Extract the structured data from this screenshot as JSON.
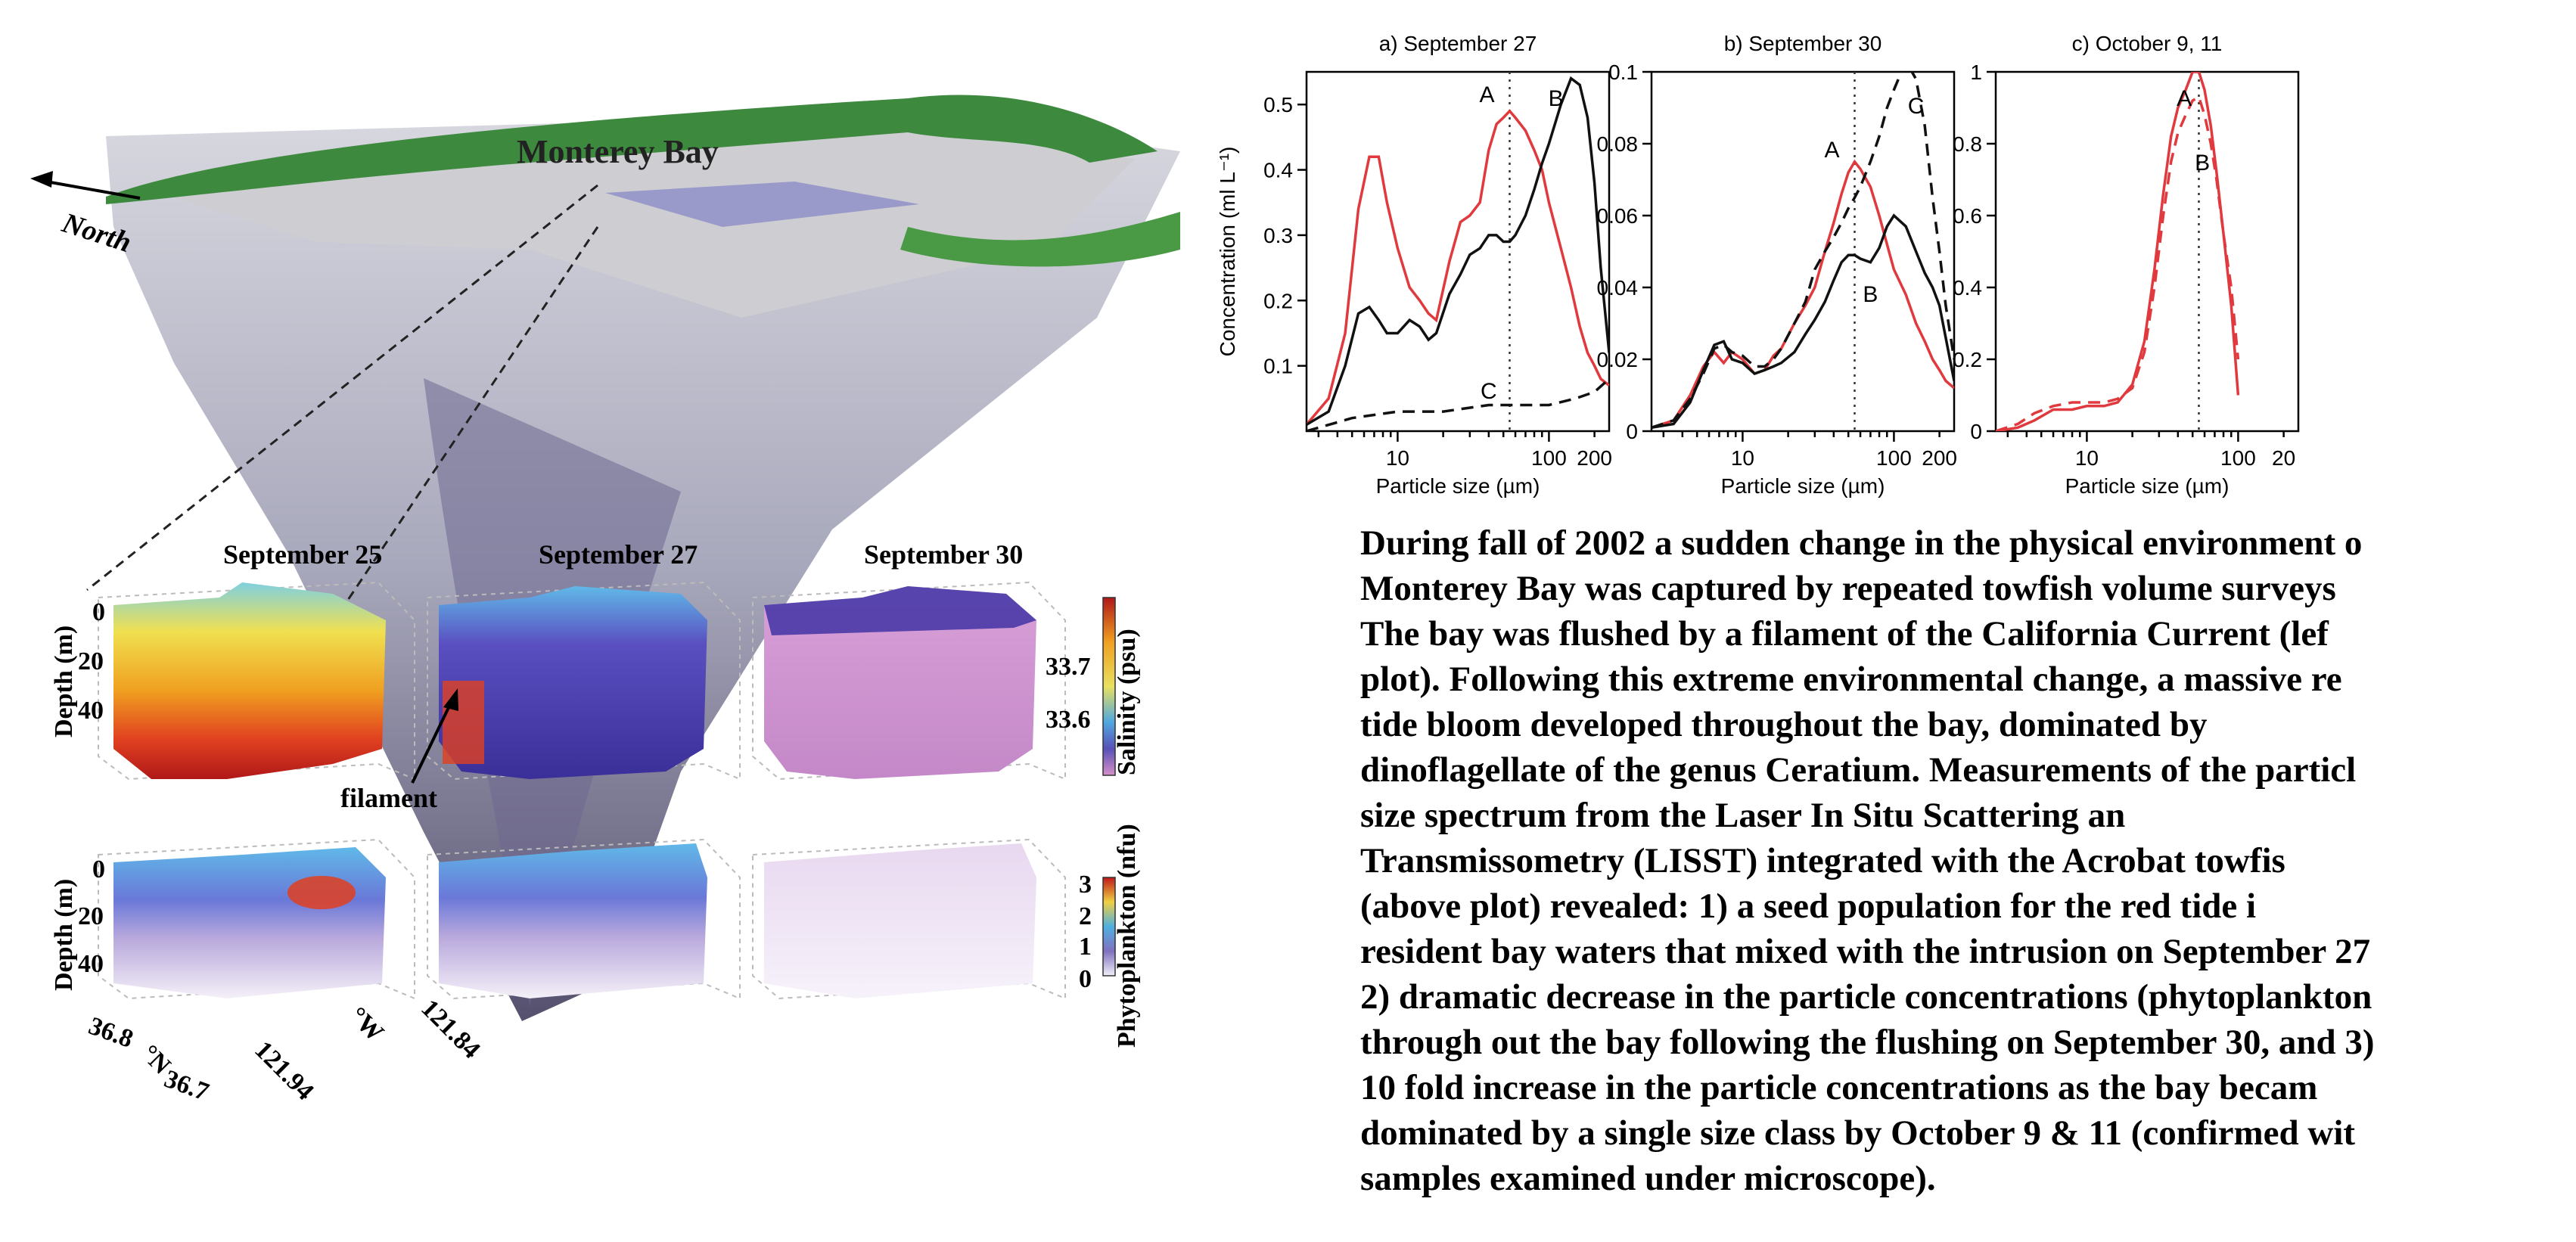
{
  "figure": {
    "map": {
      "title": "Monterey Bay",
      "north_label": "North"
    },
    "dates": [
      "September 25",
      "September 27",
      "September 30"
    ],
    "salinity": {
      "depth_label": "Depth (m)",
      "depth_ticks": [
        "0",
        "20",
        "40"
      ],
      "colorbar_label": "Salinity (psu)",
      "colorbar_ticks": [
        "33.7",
        "33.6"
      ],
      "annotation": "filament"
    },
    "phytoplankton": {
      "depth_label": "Depth (m)",
      "depth_ticks": [
        "0",
        "20",
        "40"
      ],
      "colorbar_label": "Phytoplankton (nfu)",
      "colorbar_ticks": [
        "3",
        "2",
        "1",
        "0"
      ],
      "lat_ticks": [
        "36.8",
        "36.7"
      ],
      "lat_unit": "°N",
      "lon_ticks": [
        "121.94",
        "121.84"
      ],
      "lon_unit": "°W"
    },
    "colors": {
      "red_tide": "#e0393e",
      "black": "#111111",
      "ocean_relief": "#b7b7c9",
      "land_green": "#3d8a3f",
      "survey_box": "#7777c4"
    }
  },
  "chart_data": [
    {
      "type": "line",
      "title": "a) September 27",
      "xlabel": "Particle size (µm)",
      "ylabel": "Concentration (ml L⁻¹)",
      "x_scale": "log",
      "xlim": [
        2.5,
        250
      ],
      "ylim": [
        0,
        0.55
      ],
      "x_ticks": [
        "10",
        "100",
        "200"
      ],
      "y_ticks": [
        "0.1",
        "0.2",
        "0.3",
        "0.4",
        "0.5"
      ],
      "vline_x": 55,
      "series": [
        {
          "name": "A",
          "style": "red-solid",
          "x": [
            2.5,
            3.5,
            4.5,
            5.5,
            6.5,
            7.5,
            8.5,
            10,
            12,
            14,
            16,
            18,
            22,
            26,
            30,
            35,
            40,
            45,
            50,
            55,
            60,
            70,
            80,
            90,
            100,
            120,
            140,
            160,
            180,
            200,
            220,
            250
          ],
          "y": [
            0.01,
            0.05,
            0.15,
            0.34,
            0.42,
            0.42,
            0.35,
            0.28,
            0.22,
            0.2,
            0.18,
            0.17,
            0.26,
            0.32,
            0.33,
            0.35,
            0.43,
            0.47,
            0.48,
            0.49,
            0.48,
            0.46,
            0.43,
            0.4,
            0.35,
            0.28,
            0.22,
            0.16,
            0.12,
            0.1,
            0.08,
            0.07
          ]
        },
        {
          "name": "B",
          "style": "black-solid",
          "x": [
            2.5,
            3.5,
            4.5,
            5.5,
            6.5,
            7.5,
            8.5,
            10,
            12,
            14,
            16,
            18,
            22,
            26,
            30,
            35,
            40,
            45,
            50,
            55,
            60,
            70,
            80,
            90,
            100,
            120,
            140,
            160,
            180,
            200,
            220,
            250
          ],
          "y": [
            0.01,
            0.03,
            0.1,
            0.18,
            0.19,
            0.17,
            0.15,
            0.15,
            0.17,
            0.16,
            0.14,
            0.15,
            0.21,
            0.24,
            0.27,
            0.28,
            0.3,
            0.3,
            0.29,
            0.29,
            0.3,
            0.33,
            0.37,
            0.41,
            0.44,
            0.5,
            0.54,
            0.53,
            0.48,
            0.38,
            0.25,
            0.12
          ]
        },
        {
          "name": "C",
          "style": "black-dashed",
          "x": [
            2.5,
            5,
            10,
            20,
            40,
            60,
            100,
            150,
            200,
            250
          ],
          "y": [
            0.0,
            0.02,
            0.03,
            0.03,
            0.04,
            0.04,
            0.04,
            0.05,
            0.06,
            0.08
          ]
        }
      ]
    },
    {
      "type": "line",
      "title": "b) September 30",
      "xlabel": "Particle size (µm)",
      "ylabel": "",
      "x_scale": "log",
      "xlim": [
        2.5,
        250
      ],
      "ylim": [
        0,
        0.1
      ],
      "x_ticks": [
        "10",
        "100",
        "200"
      ],
      "y_ticks": [
        "0",
        "0.02",
        "0.04",
        "0.06",
        "0.08",
        "0.1"
      ],
      "vline_x": 55,
      "series": [
        {
          "name": "A",
          "style": "red-solid",
          "x": [
            2.5,
            3.5,
            4.5,
            5.5,
            6.5,
            7.5,
            8.5,
            10,
            12,
            14,
            16,
            18,
            22,
            26,
            30,
            35,
            40,
            45,
            50,
            55,
            60,
            70,
            80,
            90,
            100,
            120,
            140,
            160,
            180,
            200,
            220,
            250
          ],
          "y": [
            0.001,
            0.003,
            0.01,
            0.018,
            0.022,
            0.019,
            0.022,
            0.02,
            0.016,
            0.017,
            0.021,
            0.023,
            0.03,
            0.035,
            0.04,
            0.05,
            0.058,
            0.066,
            0.072,
            0.075,
            0.073,
            0.068,
            0.06,
            0.052,
            0.045,
            0.038,
            0.03,
            0.025,
            0.02,
            0.017,
            0.014,
            0.012
          ]
        },
        {
          "name": "B",
          "style": "black-solid",
          "x": [
            2.5,
            3.5,
            4.5,
            5.5,
            6.5,
            7.5,
            8.5,
            10,
            12,
            14,
            16,
            18,
            22,
            26,
            30,
            35,
            40,
            45,
            50,
            55,
            60,
            70,
            80,
            90,
            100,
            120,
            140,
            160,
            180,
            200,
            220,
            250
          ],
          "y": [
            0.001,
            0.002,
            0.008,
            0.017,
            0.024,
            0.025,
            0.02,
            0.019,
            0.016,
            0.017,
            0.018,
            0.019,
            0.022,
            0.027,
            0.031,
            0.036,
            0.042,
            0.047,
            0.049,
            0.049,
            0.048,
            0.047,
            0.051,
            0.057,
            0.06,
            0.057,
            0.05,
            0.044,
            0.04,
            0.035,
            0.026,
            0.014
          ]
        },
        {
          "name": "C",
          "style": "black-dashed",
          "x": [
            2.5,
            3.5,
            4.5,
            5.5,
            6.5,
            7.5,
            8.5,
            10,
            12,
            14,
            16,
            18,
            22,
            26,
            30,
            35,
            40,
            45,
            50,
            55,
            60,
            70,
            80,
            90,
            100,
            120,
            140,
            160,
            180,
            200,
            220,
            250
          ],
          "y": [
            0.001,
            0.003,
            0.009,
            0.016,
            0.023,
            0.024,
            0.022,
            0.021,
            0.018,
            0.018,
            0.02,
            0.023,
            0.03,
            0.036,
            0.045,
            0.05,
            0.054,
            0.058,
            0.062,
            0.065,
            0.068,
            0.075,
            0.082,
            0.09,
            0.095,
            0.103,
            0.098,
            0.085,
            0.065,
            0.05,
            0.035,
            0.02
          ]
        }
      ]
    },
    {
      "type": "line",
      "title": "c) October 9, 11",
      "xlabel": "Particle size (µm)",
      "ylabel": "",
      "x_scale": "log",
      "xlim": [
        2.5,
        250
      ],
      "ylim": [
        0,
        1
      ],
      "x_ticks": [
        "10",
        "100",
        "20"
      ],
      "y_ticks": [
        "0",
        "0.2",
        "0.4",
        "0.6",
        "0.8",
        "1"
      ],
      "vline_x": 55,
      "series": [
        {
          "name": "A",
          "style": "red-solid",
          "x": [
            2.5,
            3.5,
            4.5,
            6,
            8,
            10,
            13,
            16,
            20,
            24,
            28,
            32,
            36,
            40,
            45,
            50,
            55,
            60,
            66,
            72,
            80,
            90,
            100
          ],
          "y": [
            0.0,
            0.01,
            0.03,
            0.06,
            0.06,
            0.07,
            0.07,
            0.08,
            0.13,
            0.25,
            0.45,
            0.66,
            0.82,
            0.9,
            0.95,
            1.0,
            1.0,
            0.95,
            0.85,
            0.72,
            0.55,
            0.35,
            0.1
          ]
        },
        {
          "name": "B",
          "style": "red-dashed",
          "x": [
            2.5,
            3.5,
            4.5,
            6,
            8,
            10,
            13,
            16,
            20,
            24,
            28,
            32,
            36,
            40,
            45,
            50,
            55,
            60,
            66,
            72,
            80,
            90,
            100
          ],
          "y": [
            0.0,
            0.02,
            0.05,
            0.07,
            0.08,
            0.08,
            0.08,
            0.09,
            0.12,
            0.22,
            0.4,
            0.6,
            0.75,
            0.83,
            0.88,
            0.92,
            0.93,
            0.88,
            0.8,
            0.7,
            0.55,
            0.4,
            0.2
          ]
        }
      ]
    }
  ],
  "caption": {
    "lines": [
      "During fall of 2002 a sudden change in the physical environment o",
      "Monterey Bay was captured by repeated towfish volume surveys",
      "The bay was flushed by a filament of the California Current (lef",
      "plot).  Following this extreme environmental change, a massive re",
      "tide  bloom  developed  throughout  the  bay,  dominated  by",
      "dinoflagellate of the genus Ceratium.  Measurements of the particl",
      "size  spectrum  from  the  Laser  In  Situ  Scattering  an",
      "Transmissometry (LISST) integrated with the Acrobat towfis",
      "(above plot) revealed: 1) a seed population for the red tide i",
      "resident bay waters that mixed with the intrusion on September 27",
      "2) dramatic decrease in the particle concentrations (phytoplankton",
      "through out the bay following the flushing on September 30, and 3)",
      "10 fold increase in the particle concentrations as the bay becam",
      "dominated by a single size class by October 9 & 11 (confirmed wit",
      "samples examined under microscope)."
    ]
  }
}
